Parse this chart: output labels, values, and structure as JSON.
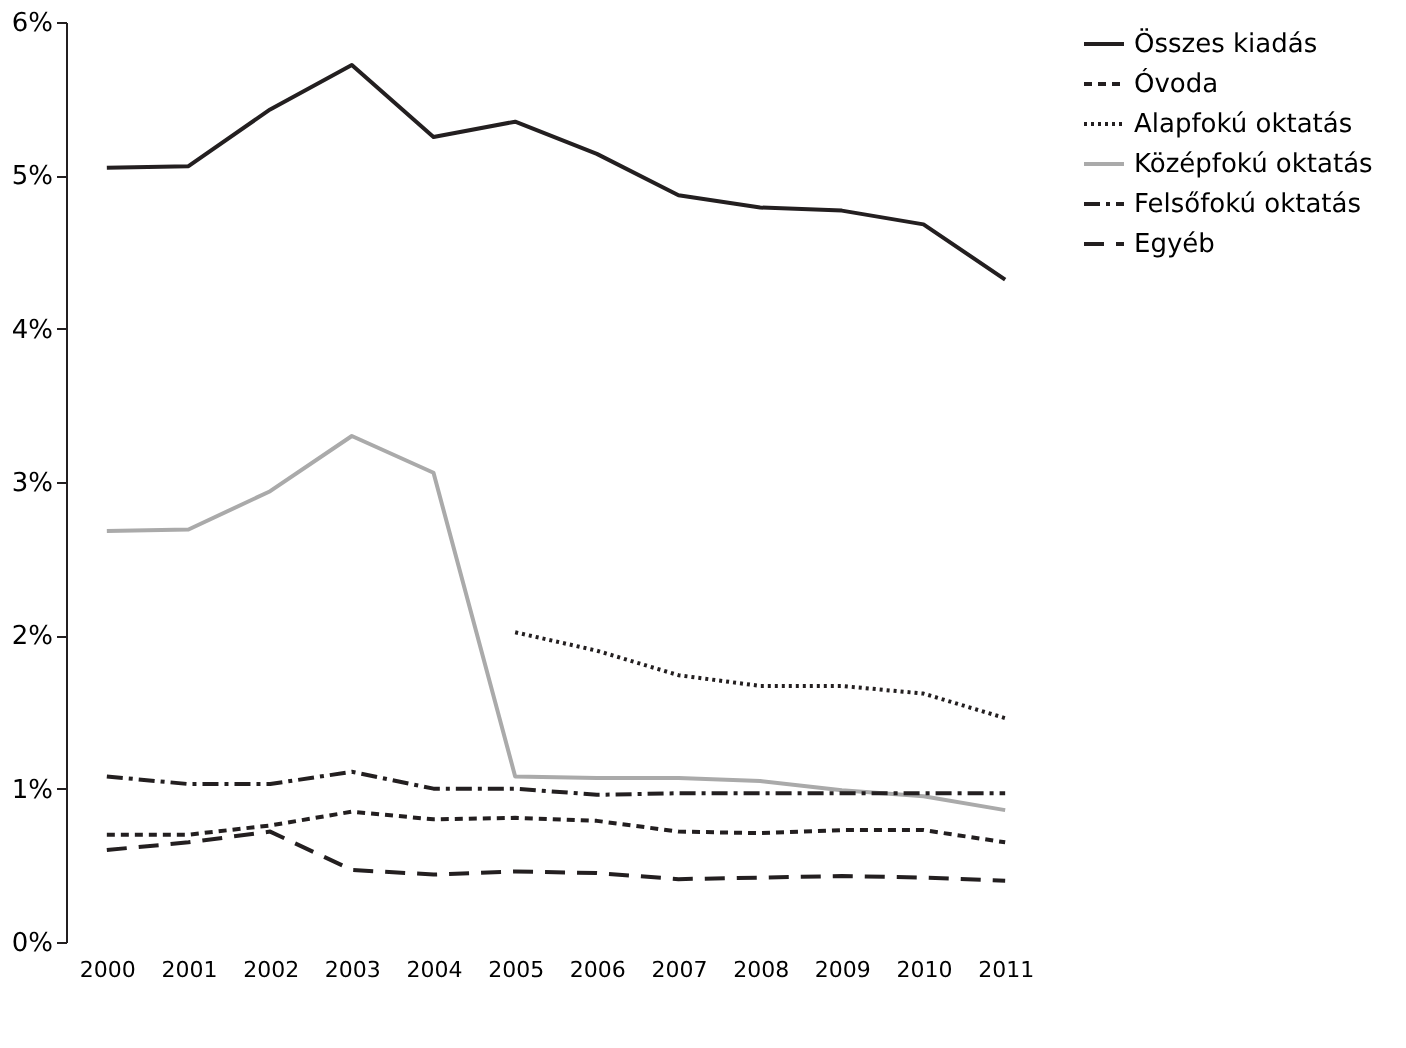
{
  "chart_data": {
    "type": "line",
    "categories": [
      "2000",
      "2001",
      "2002",
      "2003",
      "2004",
      "2005",
      "2006",
      "2007",
      "2008",
      "2009",
      "2010",
      "2011"
    ],
    "ylim": [
      0,
      6
    ],
    "yticks": [
      {
        "value": 0,
        "label": "0%"
      },
      {
        "value": 1,
        "label": "1%"
      },
      {
        "value": 2,
        "label": "2%"
      },
      {
        "value": 3,
        "label": "3%"
      },
      {
        "value": 4,
        "label": "4%"
      },
      {
        "value": 5,
        "label": "5%"
      },
      {
        "value": 6,
        "label": "6%"
      }
    ],
    "grid": false,
    "legend": "right",
    "marker": "none",
    "series": [
      {
        "name": "Összes kiadás",
        "color": "#231f20",
        "line_style": "solid",
        "values": [
          5.05,
          5.06,
          5.43,
          5.72,
          5.25,
          5.35,
          5.14,
          4.87,
          4.79,
          4.77,
          4.68,
          4.32
        ]
      },
      {
        "name": "Óvoda",
        "color": "#231f20",
        "line_style": "dashed",
        "values": [
          0.7,
          0.7,
          0.76,
          0.85,
          0.8,
          0.81,
          0.79,
          0.72,
          0.71,
          0.73,
          0.73,
          0.65
        ]
      },
      {
        "name": "Alapfokú oktatás",
        "color": "#231f20",
        "line_style": "dotted",
        "values": [
          null,
          null,
          null,
          null,
          null,
          2.02,
          1.9,
          1.74,
          1.67,
          1.67,
          1.62,
          1.46
        ]
      },
      {
        "name": "Középfokú oktatás",
        "color": "#aaaaaa",
        "line_style": "solid",
        "values": [
          2.68,
          2.69,
          2.94,
          3.3,
          3.06,
          1.08,
          1.07,
          1.07,
          1.05,
          0.99,
          0.95,
          0.86
        ]
      },
      {
        "name": "Felsőfokú oktatás",
        "color": "#231f20",
        "line_style": "dashdot",
        "values": [
          1.08,
          1.03,
          1.03,
          1.11,
          1.0,
          1.0,
          0.96,
          0.97,
          0.97,
          0.97,
          0.97,
          0.97
        ]
      },
      {
        "name": "Egyéb",
        "color": "#231f20",
        "line_style": "longdash",
        "values": [
          0.6,
          0.65,
          0.72,
          0.47,
          0.44,
          0.46,
          0.45,
          0.41,
          0.42,
          0.43,
          0.42,
          0.4
        ]
      }
    ]
  }
}
